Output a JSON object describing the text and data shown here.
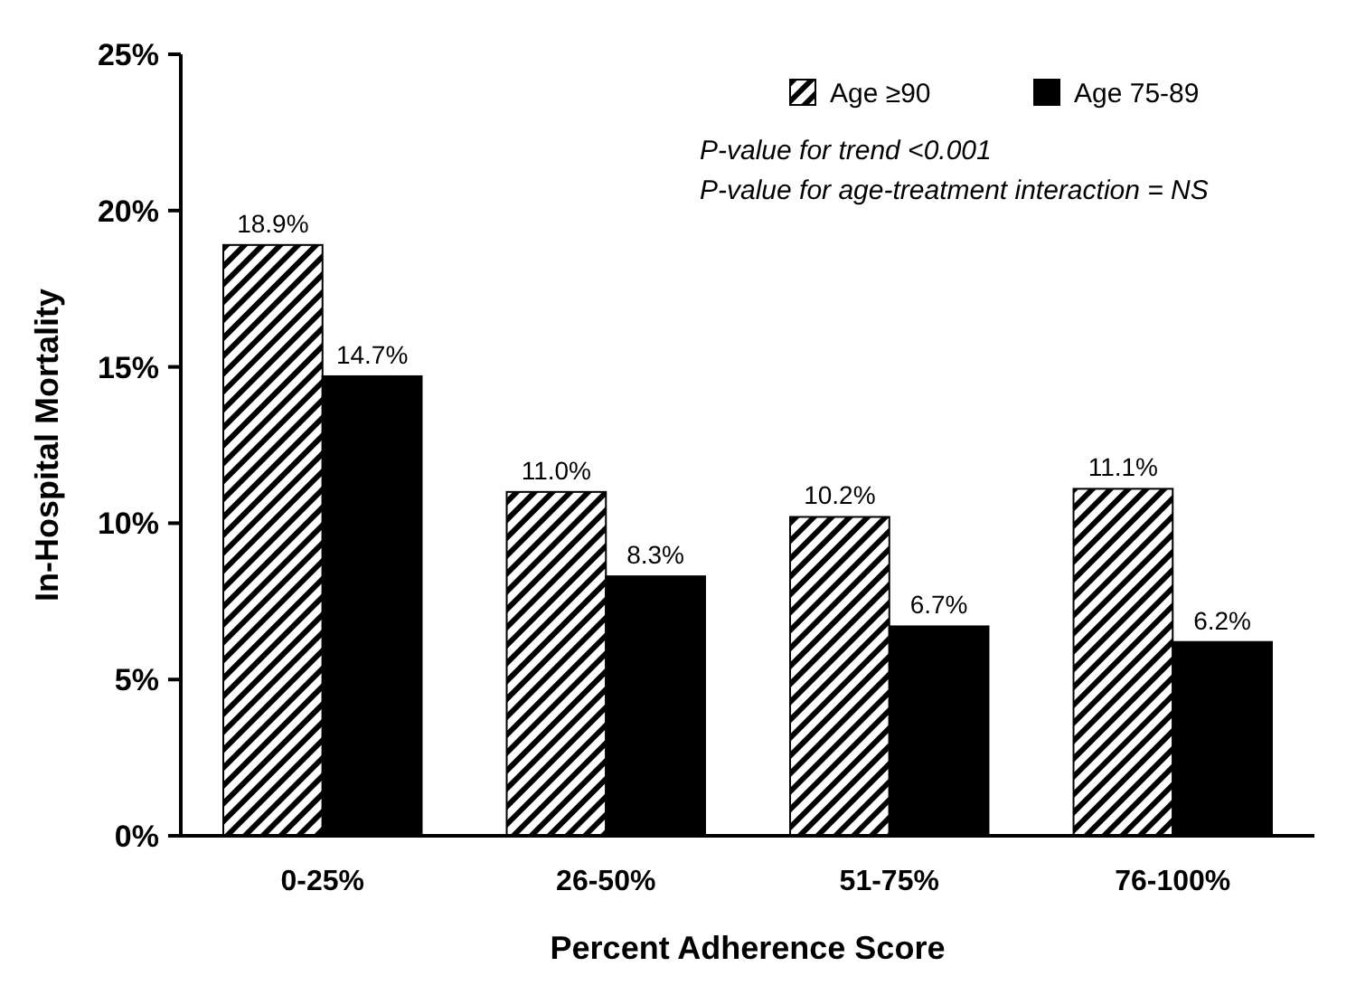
{
  "chart_data": {
    "type": "bar",
    "xlabel": "Percent Adherence Score",
    "ylabel": "In-Hospital Mortality",
    "categories": [
      "0-25%",
      "26-50%",
      "51-75%",
      "76-100%"
    ],
    "series": [
      {
        "name": "Age ≥90",
        "color": "#000000",
        "values": [
          18.9,
          11.0,
          10.2,
          11.1
        ],
        "value_labels": [
          "18.9%",
          "11.0%",
          "10.2%",
          "11.1%"
        ]
      },
      {
        "name": "Age 75-89",
        "color": "#000000",
        "values": [
          14.7,
          8.3,
          6.7,
          6.2
        ],
        "value_labels": [
          "14.7%",
          "8.3%",
          "6.7%",
          "6.2%"
        ]
      }
    ],
    "ylim": [
      0,
      25
    ],
    "yticks": [
      {
        "value": 0,
        "label": "0%"
      },
      {
        "value": 5,
        "label": "5%"
      },
      {
        "value": 10,
        "label": "10%"
      },
      {
        "value": 15,
        "label": "15%"
      },
      {
        "value": 20,
        "label": "20%"
      },
      {
        "value": 25,
        "label": "25%"
      }
    ],
    "annotations": [
      "P-value for trend <0.001",
      "P-value for age-treatment interaction = NS"
    ],
    "legend": "top right",
    "grid": false
  }
}
